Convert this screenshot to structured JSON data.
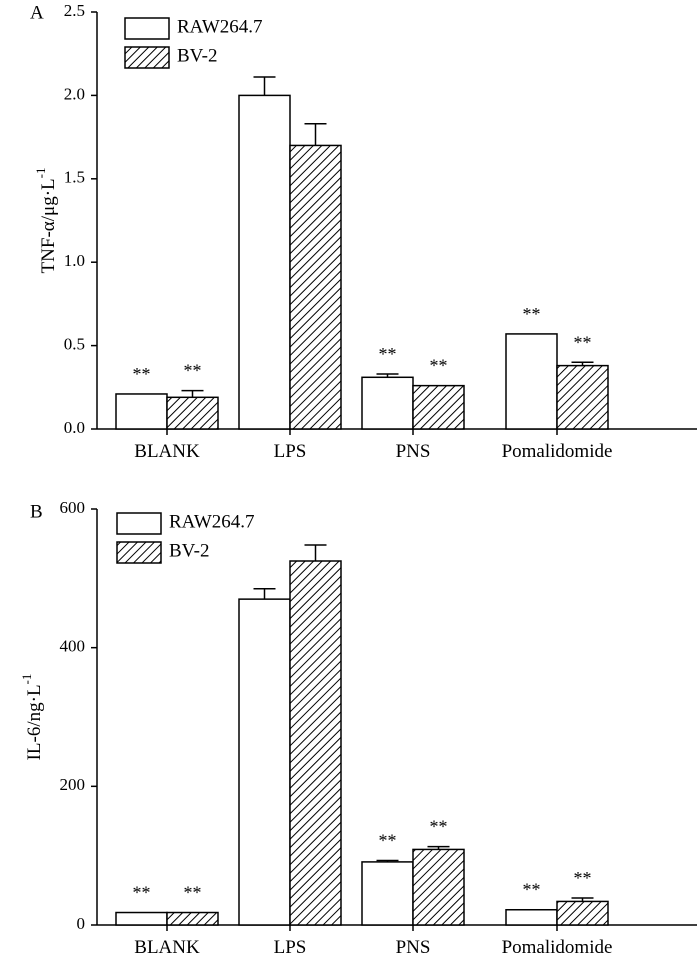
{
  "chart_data": [
    {
      "panel": "A",
      "type": "bar",
      "ylabel": "TNF-α/μg·L",
      "ylabel_superscript": "-1",
      "ylim": [
        0,
        2.5
      ],
      "yticks": [
        "0.0",
        "0.5",
        "1.0",
        "1.5",
        "2.0",
        "2.5"
      ],
      "categories": [
        "BLANK",
        "LPS",
        "PNS",
        "Pomalidomide"
      ],
      "legend": [
        "RAW264.7",
        "BV-2"
      ],
      "series": [
        {
          "name": "RAW264.7",
          "values": [
            0.21,
            2.0,
            0.31,
            0.57
          ],
          "errors": [
            0.0,
            0.11,
            0.02,
            0.0
          ],
          "significance": [
            "**",
            "",
            "**",
            "**"
          ]
        },
        {
          "name": "BV-2",
          "values": [
            0.19,
            1.7,
            0.26,
            0.38
          ],
          "errors": [
            0.04,
            0.13,
            0.0,
            0.02
          ],
          "significance": [
            "**",
            "",
            "**",
            "**"
          ]
        }
      ]
    },
    {
      "panel": "B",
      "type": "bar",
      "ylabel": "IL-6/ng·L",
      "ylabel_superscript": "-1",
      "ylim": [
        0,
        600
      ],
      "yticks": [
        "0",
        "200",
        "400",
        "600"
      ],
      "categories": [
        "BLANK",
        "LPS",
        "PNS",
        "Pomalidomide"
      ],
      "legend": [
        "RAW264.7",
        "BV-2"
      ],
      "series": [
        {
          "name": "RAW264.7",
          "values": [
            18,
            470,
            91,
            22
          ],
          "errors": [
            0,
            15,
            2,
            0
          ],
          "significance": [
            "**",
            "",
            "**",
            "**"
          ]
        },
        {
          "name": "BV-2",
          "values": [
            18,
            525,
            109,
            34
          ],
          "errors": [
            0,
            23,
            4,
            5
          ],
          "significance": [
            "**",
            "",
            "**",
            "**"
          ]
        }
      ]
    }
  ]
}
